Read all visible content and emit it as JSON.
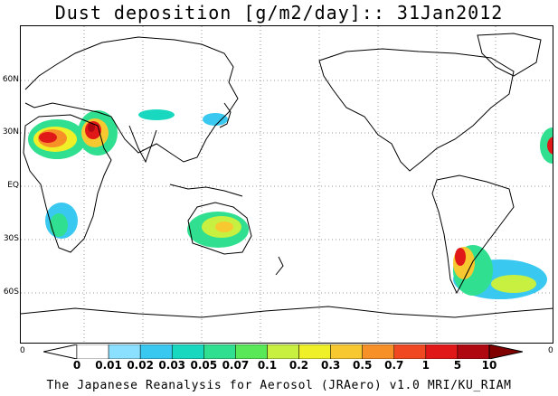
{
  "title": "Dust deposition [g/m2/day]:: 31Jan2012",
  "footer": "The Japanese Reanalysis for Aerosol (JRAero) v1.0 MRI/KU_RIAM",
  "latitude_labels": [
    "60N",
    "30N",
    "EQ",
    "30S",
    "60S"
  ],
  "corner_labels": {
    "bottom_left": "0",
    "bottom_right": "0"
  },
  "colorbar": {
    "labels": [
      "0",
      "0.01",
      "0.02",
      "0.03",
      "0.05",
      "0.07",
      "0.1",
      "0.2",
      "0.3",
      "0.5",
      "0.7",
      "1",
      "5",
      "10"
    ],
    "colors": [
      "#ffffff",
      "#ffffff",
      "#8ce0ff",
      "#38c8f0",
      "#18d8c0",
      "#30e090",
      "#58e858",
      "#c8f040",
      "#f0f028",
      "#f8c830",
      "#f89028",
      "#f04820",
      "#e01818",
      "#b00810",
      "#800000"
    ],
    "below_color": "#ffffff",
    "above_color": "#800000"
  },
  "colors": {
    "coastline": "#000000",
    "gridline": "#999999"
  }
}
